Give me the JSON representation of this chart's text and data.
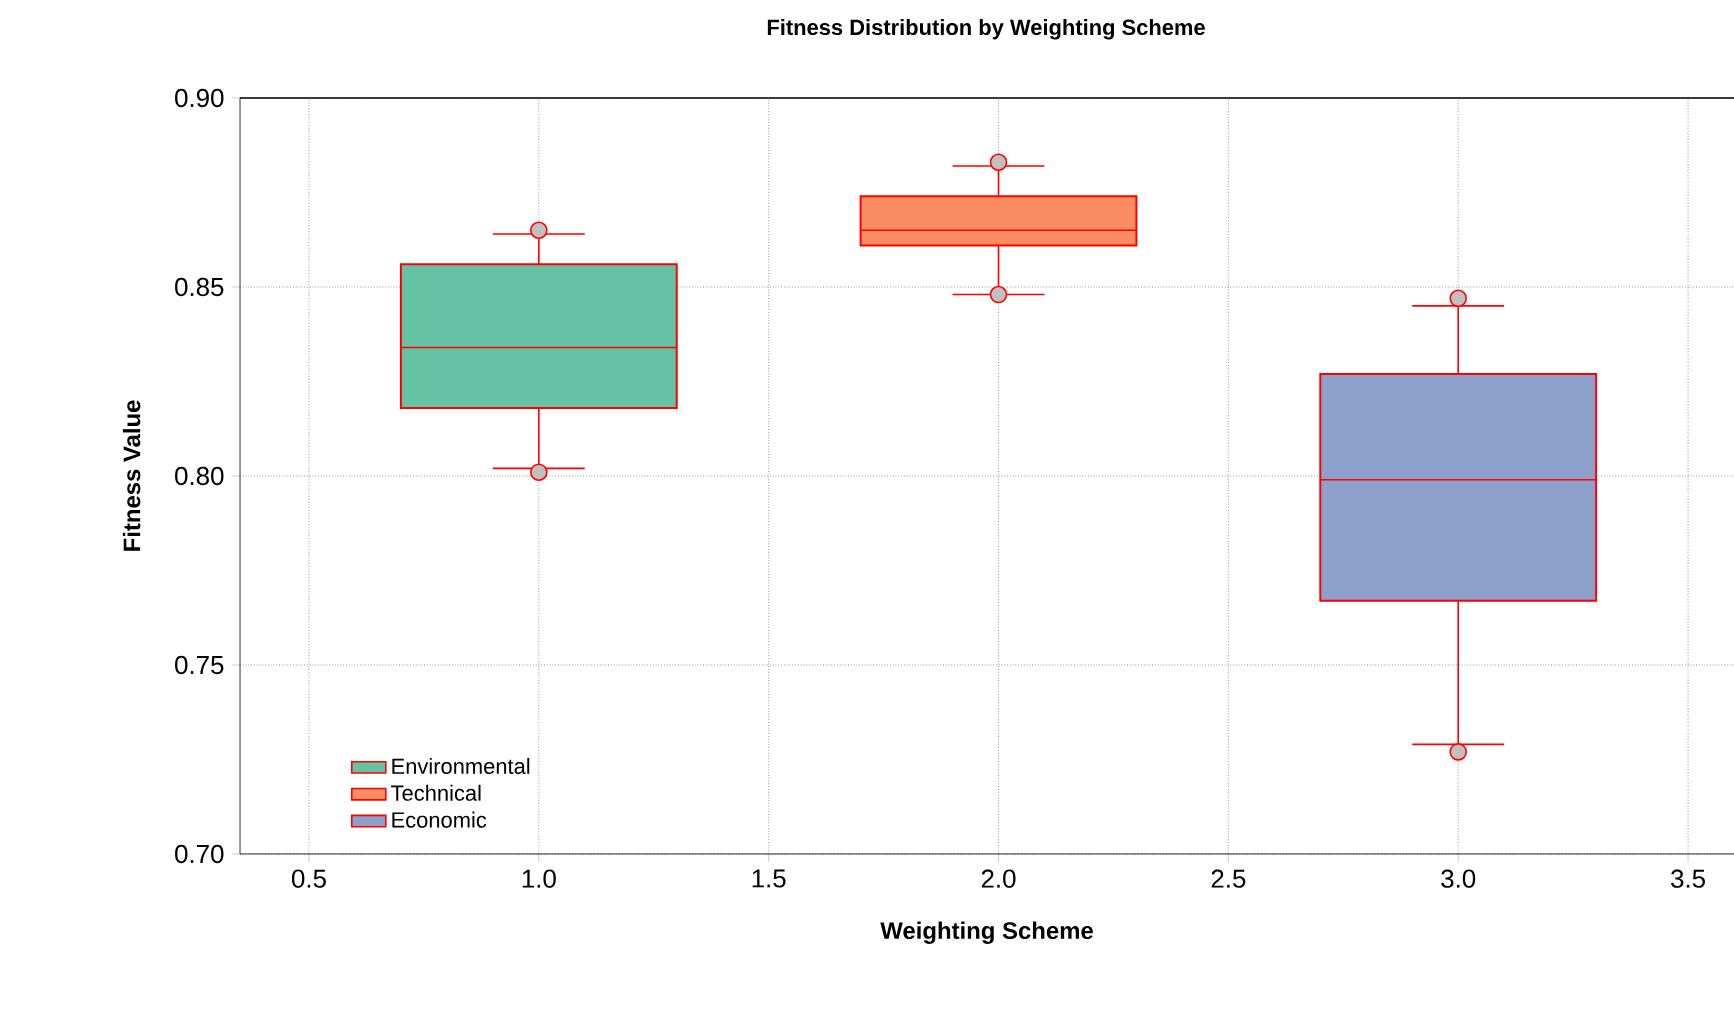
{
  "chart_data": {
    "type": "box",
    "title": "Fitness Distribution by Weighting Scheme",
    "xlabel": "Weighting Scheme",
    "ylabel": "Fitness Value",
    "xlim": [
      0.35,
      3.6
    ],
    "xticks": [
      {
        "value": 0.5,
        "label": "0.5"
      },
      {
        "value": 1.0,
        "label": "1.0"
      },
      {
        "value": 1.5,
        "label": "1.5"
      },
      {
        "value": 2.0,
        "label": "2.0"
      },
      {
        "value": 2.5,
        "label": "2.5"
      },
      {
        "value": 3.0,
        "label": "3.0"
      },
      {
        "value": 3.5,
        "label": "3.5"
      }
    ],
    "ylim": [
      0.7,
      0.9
    ],
    "yticks": [
      {
        "value": 0.7,
        "label": "0.70"
      },
      {
        "value": 0.75,
        "label": "0.75"
      },
      {
        "value": 0.8,
        "label": "0.80"
      },
      {
        "value": 0.85,
        "label": "0.85"
      },
      {
        "value": 0.9,
        "label": "0.90"
      }
    ],
    "grid": true,
    "legend": "bottom left",
    "series": [
      {
        "name": "Environmental",
        "color": "#66c2a5",
        "x": [
          1
        ],
        "boxes": [
          {
            "low": 0.802,
            "q1": 0.818,
            "median": 0.834,
            "q3": 0.856,
            "high": 0.864
          }
        ]
      },
      {
        "name": "Technical",
        "color": "#fc8d62",
        "x": [
          2
        ],
        "boxes": [
          {
            "low": 0.848,
            "q1": 0.861,
            "median": 0.865,
            "q3": 0.874,
            "high": 0.882
          }
        ]
      },
      {
        "name": "Economic",
        "color": "#8da0cb",
        "x": [
          3
        ],
        "boxes": [
          {
            "low": 0.729,
            "q1": 0.767,
            "median": 0.799,
            "q3": 0.827,
            "high": 0.845
          }
        ]
      },
      {
        "type": "scatter",
        "color": "#c0c0c0",
        "marker": "circle",
        "x": [
          1,
          1,
          2,
          2,
          3,
          3
        ],
        "values": [
          0.865,
          0.801,
          0.883,
          0.848,
          0.847,
          0.727
        ]
      }
    ]
  }
}
